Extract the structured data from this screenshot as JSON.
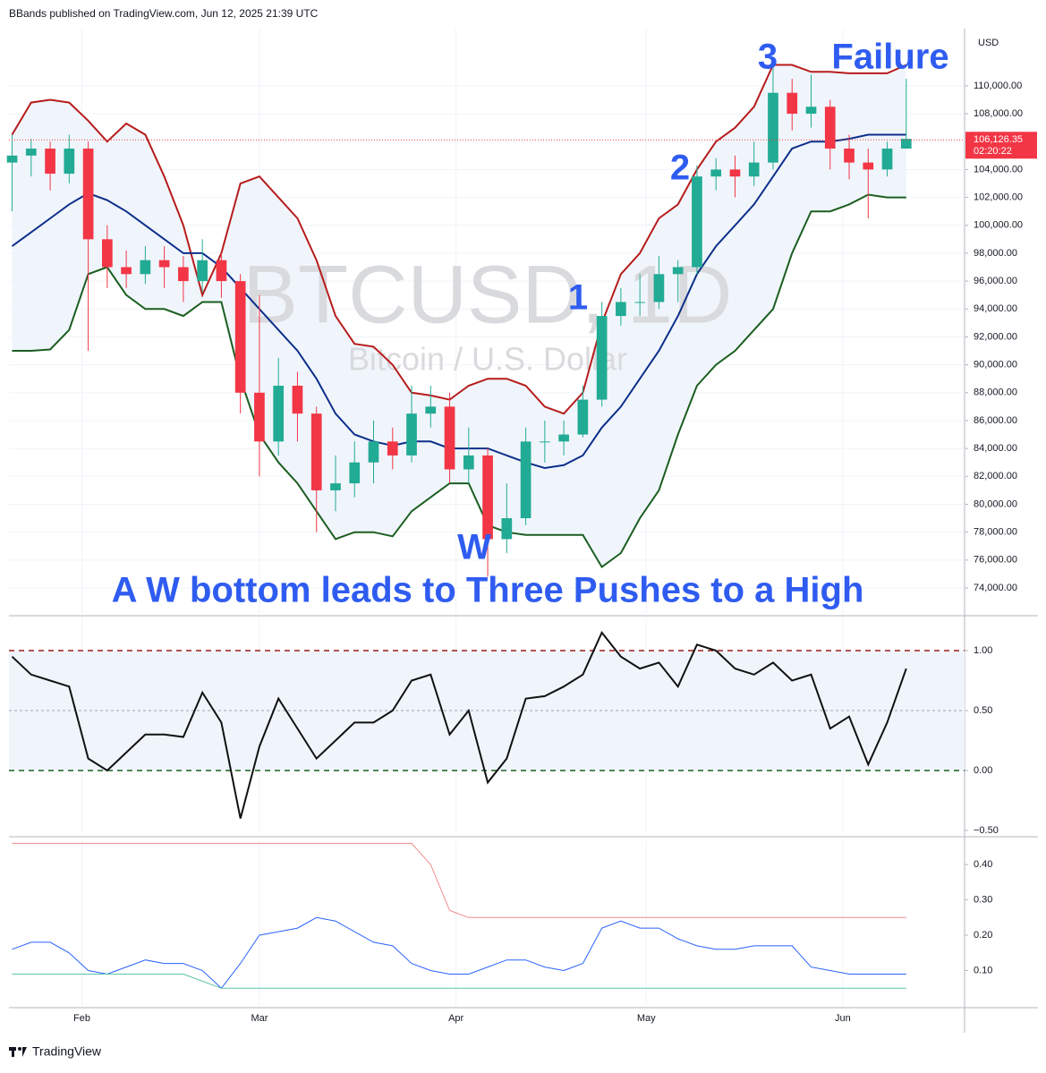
{
  "header": "BBands published on TradingView.com, Jun 12, 2025 21:39 UTC",
  "footer": "TradingView",
  "chart_data": [
    {
      "type": "candlestick",
      "title": "BTCUSD, 1D",
      "subtitle": "Bitcoin / U.S. Dollar",
      "currency": "USD",
      "up_color": "#22ab94",
      "down_color": "#f23645",
      "band_fill": "#f0f5fc",
      "x": [
        21,
        24,
        27,
        30,
        33,
        36,
        39,
        42,
        45,
        48,
        51,
        54,
        57,
        60,
        63,
        66,
        69,
        72,
        75,
        78,
        81,
        84,
        87,
        90,
        93,
        96,
        99,
        102,
        105,
        108,
        111,
        114,
        117,
        120,
        123,
        126,
        129,
        132,
        135,
        138,
        141,
        144,
        147,
        150,
        153,
        156,
        159,
        162
      ],
      "open": [
        104500,
        105000,
        105500,
        103700,
        105500,
        99000,
        97000,
        96500,
        97500,
        97000,
        96000,
        97500,
        96000,
        88000,
        84500,
        88500,
        86500,
        81000,
        81500,
        83000,
        84500,
        83500,
        86500,
        87000,
        82500,
        83500,
        77500,
        79000,
        84500,
        84500,
        85000,
        87500,
        93500,
        94500,
        94500,
        96500,
        97000,
        103500,
        104000,
        103500,
        104500,
        109500,
        108000,
        108500,
        105500,
        104500,
        104000,
        105500
      ],
      "high": [
        106500,
        106200,
        106000,
        106500,
        106000,
        100000,
        98200,
        98500,
        98500,
        97800,
        99000,
        98000,
        96500,
        95000,
        90500,
        89500,
        87000,
        83500,
        84500,
        86000,
        85500,
        88500,
        88500,
        88000,
        85500,
        84000,
        81500,
        85500,
        86000,
        86000,
        88500,
        94500,
        95500,
        96500,
        97800,
        97500,
        104300,
        104800,
        105000,
        106000,
        111800,
        110500,
        110800,
        109000,
        106500,
        105500,
        106000,
        110500
      ],
      "low": [
        101000,
        103500,
        102500,
        103000,
        91000,
        95500,
        95500,
        95800,
        95500,
        94500,
        95200,
        94800,
        86500,
        82000,
        83500,
        84500,
        78000,
        79500,
        80500,
        81500,
        82500,
        83000,
        85500,
        81500,
        81500,
        74800,
        76500,
        78500,
        83000,
        83500,
        84800,
        87000,
        92800,
        93500,
        94000,
        94500,
        96500,
        102500,
        102000,
        102800,
        104000,
        106800,
        107000,
        104000,
        103300,
        100500,
        103500,
        105500
      ],
      "close": [
        105000,
        105500,
        103700,
        105500,
        99000,
        97000,
        96500,
        97500,
        97000,
        96000,
        97500,
        96000,
        88000,
        84500,
        88500,
        86500,
        81000,
        81500,
        83000,
        84500,
        83500,
        86500,
        87000,
        82500,
        83500,
        77500,
        79000,
        84500,
        84500,
        85000,
        87500,
        93500,
        94500,
        94500,
        96500,
        97000,
        103500,
        104000,
        103500,
        104500,
        109500,
        108000,
        108500,
        105500,
        104500,
        104000,
        105500,
        106200
      ],
      "series": [
        {
          "color": "#b71c1c",
          "values": [
            106500,
            108800,
            109000,
            108800,
            107500,
            106000,
            107300,
            106500,
            103500,
            100000,
            95000,
            98000,
            103000,
            103500,
            102000,
            100500,
            97500,
            93500,
            91500,
            91300,
            90000,
            88000,
            87800,
            87500,
            88500,
            89000,
            89000,
            88500,
            87000,
            86500,
            88000,
            93000,
            96500,
            98000,
            100500,
            101500,
            104000,
            106000,
            107000,
            108500,
            111500,
            111500,
            111000,
            111000,
            110900,
            110900,
            110900,
            111500
          ]
        },
        {
          "color": "#0d2f8a",
          "values": [
            98500,
            99500,
            100500,
            101500,
            102300,
            101800,
            101000,
            100000,
            99000,
            98000,
            98000,
            97000,
            95500,
            94000,
            92500,
            91000,
            89000,
            86500,
            85000,
            84500,
            84200,
            84500,
            84500,
            84000,
            84000,
            84000,
            83500,
            83000,
            82600,
            82800,
            83500,
            85500,
            87000,
            89000,
            91000,
            93500,
            96500,
            98500,
            100000,
            101500,
            103500,
            105500,
            106000,
            106000,
            106200,
            106500,
            106500,
            106500
          ]
        },
        {
          "color": "#1b5e20",
          "values": [
            91000,
            91000,
            91100,
            92500,
            96500,
            97000,
            95000,
            94000,
            94000,
            93500,
            94500,
            94500,
            89000,
            85000,
            83000,
            81500,
            79500,
            77500,
            78000,
            78000,
            77700,
            79500,
            80500,
            81500,
            81500,
            78500,
            78000,
            77800,
            77800,
            77800,
            77800,
            75500,
            76500,
            79000,
            81000,
            85000,
            88500,
            90000,
            91000,
            92500,
            94000,
            98000,
            101000,
            101000,
            101500,
            102200,
            102000,
            102000
          ]
        }
      ],
      "last_price": {
        "value": 106126.35,
        "label": "106,126.35"
      },
      "countdown": "02:20:22",
      "annotations": [
        "1",
        "2",
        "3",
        "Failure",
        "W",
        "A W bottom leads to Three Pushes to a High"
      ],
      "annotation_color": "#2f5cf0",
      "xlim": [
        20.5,
        171.2
      ],
      "ylim": [
        72139,
        114100
      ],
      "yticks": [
        {
          "value": 74000,
          "label": "74,000.00"
        },
        {
          "value": 76000,
          "label": "76,000.00"
        },
        {
          "value": 78000,
          "label": "78,000.00"
        },
        {
          "value": 80000,
          "label": "80,000.00"
        },
        {
          "value": 82000,
          "label": "82,000.00"
        },
        {
          "value": 84000,
          "label": "84,000.00"
        },
        {
          "value": 86000,
          "label": "86,000.00"
        },
        {
          "value": 88000,
          "label": "88,000.00"
        },
        {
          "value": 90000,
          "label": "90,000.00"
        },
        {
          "value": 92000,
          "label": "92,000.00"
        },
        {
          "value": 94000,
          "label": "94,000.00"
        },
        {
          "value": 96000,
          "label": "96,000.00"
        },
        {
          "value": 98000,
          "label": "98,000.00"
        },
        {
          "value": 100000,
          "label": "100,000.00"
        },
        {
          "value": 102000,
          "label": "102,000.00"
        },
        {
          "value": 104000,
          "label": "104,000.00"
        },
        {
          "value": 106000,
          "label": "106,000.00"
        },
        {
          "value": 108000,
          "label": "108,000.00"
        },
        {
          "value": 110000,
          "label": "110,000.00"
        }
      ],
      "grid": true
    },
    {
      "type": "line",
      "color": "#111111",
      "band_fill": "#f0f5fc",
      "x": [
        21,
        24,
        27,
        30,
        33,
        36,
        39,
        42,
        45,
        48,
        51,
        54,
        57,
        60,
        63,
        66,
        69,
        72,
        75,
        78,
        81,
        84,
        87,
        90,
        93,
        96,
        99,
        102,
        105,
        108,
        111,
        114,
        117,
        120,
        123,
        126,
        129,
        132,
        135,
        138,
        141,
        144,
        147,
        150,
        153,
        156,
        159,
        162
      ],
      "values": [
        0.95,
        0.8,
        0.75,
        0.7,
        0.1,
        0.0,
        0.15,
        0.3,
        0.3,
        0.28,
        0.65,
        0.4,
        -0.4,
        0.2,
        0.6,
        0.35,
        0.1,
        0.25,
        0.4,
        0.4,
        0.5,
        0.75,
        0.8,
        0.3,
        0.5,
        -0.1,
        0.1,
        0.6,
        0.62,
        0.7,
        0.8,
        1.15,
        0.95,
        0.85,
        0.9,
        0.7,
        1.05,
        1.0,
        0.85,
        0.8,
        0.9,
        0.75,
        0.8,
        0.35,
        0.45,
        0.05,
        0.4,
        0.85
      ],
      "levels": [
        {
          "value": 1,
          "color": "#9b1c1c"
        },
        {
          "value": 0.5,
          "color": "#9aa3b0"
        },
        {
          "value": 0,
          "color": "#1b5e20"
        }
      ],
      "xlim": [
        20.5,
        171.2
      ],
      "ylim": [
        -0.515,
        1.276
      ],
      "yticks": [
        {
          "value": 1,
          "label": "1.00"
        },
        {
          "value": 0.5,
          "label": "0.50"
        },
        {
          "value": 0,
          "label": "0.00"
        },
        {
          "value": -0.5,
          "label": "−0.50"
        }
      ]
    },
    {
      "type": "line",
      "x": [
        21,
        24,
        27,
        30,
        33,
        36,
        39,
        42,
        45,
        48,
        51,
        54,
        57,
        60,
        63,
        66,
        69,
        72,
        75,
        78,
        81,
        84,
        87,
        90,
        93,
        96,
        99,
        102,
        105,
        108,
        111,
        114,
        117,
        120,
        123,
        126,
        129,
        132,
        135,
        138,
        141,
        144,
        147,
        150,
        153,
        156,
        159,
        162
      ],
      "series": [
        {
          "color": "#2962ff",
          "values": [
            0.16,
            0.18,
            0.18,
            0.15,
            0.1,
            0.09,
            0.11,
            0.13,
            0.12,
            0.12,
            0.1,
            0.05,
            0.12,
            0.2,
            0.21,
            0.22,
            0.25,
            0.24,
            0.21,
            0.18,
            0.17,
            0.12,
            0.1,
            0.09,
            0.09,
            0.11,
            0.13,
            0.13,
            0.11,
            0.1,
            0.12,
            0.22,
            0.24,
            0.22,
            0.22,
            0.19,
            0.17,
            0.16,
            0.16,
            0.17,
            0.17,
            0.17,
            0.11,
            0.1,
            0.09,
            0.09,
            0.09,
            0.09
          ]
        },
        {
          "color": "#f28b8b",
          "values": [
            0.46,
            0.46,
            0.46,
            0.46,
            0.46,
            0.46,
            0.46,
            0.46,
            0.46,
            0.46,
            0.46,
            0.46,
            0.46,
            0.46,
            0.46,
            0.46,
            0.46,
            0.46,
            0.46,
            0.46,
            0.46,
            0.46,
            0.4,
            0.27,
            0.25,
            0.25,
            0.25,
            0.25,
            0.25,
            0.25,
            0.25,
            0.25,
            0.25,
            0.25,
            0.25,
            0.25,
            0.25,
            0.25,
            0.25,
            0.25,
            0.25,
            0.25,
            0.25,
            0.25,
            0.25,
            0.25,
            0.25,
            0.25
          ]
        },
        {
          "color": "#5cc4a8",
          "values": [
            0.09,
            0.09,
            0.09,
            0.09,
            0.09,
            0.09,
            0.09,
            0.09,
            0.09,
            0.09,
            0.07,
            0.05,
            0.05,
            0.05,
            0.05,
            0.05,
            0.05,
            0.05,
            0.05,
            0.05,
            0.05,
            0.05,
            0.05,
            0.05,
            0.05,
            0.05,
            0.05,
            0.05,
            0.05,
            0.05,
            0.05,
            0.05,
            0.05,
            0.05,
            0.05,
            0.05,
            0.05,
            0.05,
            0.05,
            0.05,
            0.05,
            0.05,
            0.05,
            0.05,
            0.05,
            0.05,
            0.05,
            0.05
          ]
        }
      ],
      "xlim": [
        20.5,
        171.2
      ],
      "ylim": [
        0.0,
        0.466
      ],
      "yticks": [
        {
          "value": 0.1,
          "label": "0.10"
        },
        {
          "value": 0.2,
          "label": "0.20"
        },
        {
          "value": 0.3,
          "label": "0.30"
        },
        {
          "value": 0.4,
          "label": "0.40"
        }
      ],
      "xticks": [
        {
          "value": 32,
          "label": "Feb"
        },
        {
          "value": 60,
          "label": "Mar"
        },
        {
          "value": 91,
          "label": "Apr"
        },
        {
          "value": 121,
          "label": "May"
        },
        {
          "value": 152,
          "label": "Jun"
        }
      ]
    }
  ]
}
